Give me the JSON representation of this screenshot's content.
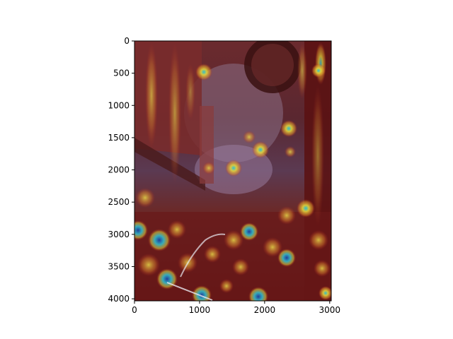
{
  "figure": {
    "image_description_icon": "heatmap-overlay-street-photo-image",
    "x_axis": {
      "ticks": [
        {
          "value": 0,
          "label": "0"
        },
        {
          "value": 1000,
          "label": "1000"
        },
        {
          "value": 2000,
          "label": "2000"
        },
        {
          "value": 3000,
          "label": "3000"
        }
      ],
      "range": [
        0,
        3024
      ]
    },
    "y_axis": {
      "ticks": [
        {
          "value": 0,
          "label": "0"
        },
        {
          "value": 500,
          "label": "500"
        },
        {
          "value": 1000,
          "label": "1000"
        },
        {
          "value": 1500,
          "label": "1500"
        },
        {
          "value": 2000,
          "label": "2000"
        },
        {
          "value": 2500,
          "label": "2500"
        },
        {
          "value": 3000,
          "label": "3000"
        },
        {
          "value": 3500,
          "label": "3500"
        },
        {
          "value": 4000,
          "label": "4000"
        }
      ],
      "range": [
        0,
        4032
      ],
      "inverted": true
    },
    "colors": {
      "dark_red": "#5a0f0f",
      "red": "#b3261e",
      "yellow": "#d9c93a",
      "cyan": "#2ec4d6",
      "blue": "#1b3fa0"
    }
  }
}
